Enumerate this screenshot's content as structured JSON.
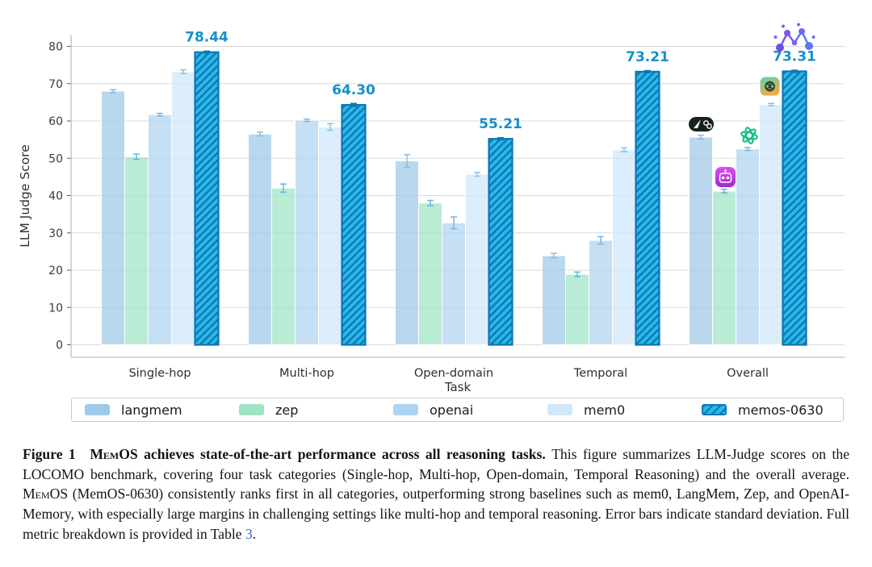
{
  "chart_data": {
    "type": "bar",
    "categories": [
      "Single-hop",
      "Multi-hop",
      "Open-domain",
      "Temporal",
      "Overall"
    ],
    "series": [
      {
        "name": "langmem",
        "color": "#9ec9e8",
        "err_color": "#93b9d9",
        "values": [
          68.0,
          56.5,
          49.3,
          23.9,
          55.7
        ],
        "errors": [
          0.4,
          0.5,
          1.7,
          0.6,
          0.5
        ]
      },
      {
        "name": "zep",
        "color": "#9fe3c4",
        "err_color": "#5fb9d6",
        "values": [
          50.4,
          42.0,
          38.0,
          18.9,
          41.2
        ],
        "errors": [
          0.7,
          1.1,
          0.7,
          0.6,
          0.5
        ]
      },
      {
        "name": "openai",
        "color": "#aed3f0",
        "err_color": "#7fb4e0",
        "values": [
          61.7,
          60.2,
          32.7,
          28.0,
          52.5
        ],
        "errors": [
          0.35,
          0.3,
          1.6,
          1.0,
          0.4
        ]
      },
      {
        "name": "mem0",
        "color": "#cfe7fa",
        "err_color": "#8cc2e6",
        "values": [
          73.2,
          58.4,
          45.7,
          52.3,
          64.4
        ],
        "errors": [
          0.5,
          0.9,
          0.5,
          0.5,
          0.3
        ]
      },
      {
        "name": "memos-0630",
        "color": "#29b7ea",
        "err_color": "#0d7ab8",
        "hatch": true,
        "hatch_color": "#0f76b0",
        "values": [
          78.44,
          64.3,
          55.21,
          73.21,
          73.31
        ],
        "errors": [
          0.3,
          0.4,
          0.3,
          0.3,
          0.3
        ],
        "value_labels": [
          "78.44",
          "64.30",
          "55.21",
          "73.21",
          "73.31"
        ]
      }
    ],
    "xlabel": "Task",
    "ylabel": "LLM Judge Score",
    "yticks": [
      0,
      10,
      20,
      30,
      40,
      50,
      60,
      70,
      80
    ],
    "ylim": [
      0,
      83
    ],
    "grid": true,
    "legend_position": "bottom",
    "annotation_color": "#1590c8"
  },
  "icons": {
    "langmem": "pen-and-link-badge",
    "zep": "robot-badge",
    "openai": "openai-flower",
    "mem0": "gradient-knot-badge",
    "memos": "purple-network-nodes-logo"
  },
  "caption": {
    "segments": [
      {
        "text": "Figure 1  ",
        "style": "b"
      },
      {
        "text": "MemOS",
        "style": "b sc"
      },
      {
        "text": " achieves state-of-the-art performance across all reasoning tasks. ",
        "style": "b"
      },
      {
        "text": "This figure summarizes LLM-Judge scores on the LOCOMO benchmark, covering four task categories (Single-hop, Multi-hop, Open-domain, Temporal Reasoning) and the overall average. ",
        "style": ""
      },
      {
        "text": "MemOS",
        "style": "sc"
      },
      {
        "text": " (MemOS-0630) consistently ranks first in all categories, outperforming strong baselines such as mem0, LangMem, Zep, and OpenAI-Memory, with especially large margins in challenging settings like multi-hop and temporal reasoning. Error bars indicate standard deviation. Full metric breakdown is provided in Table ",
        "style": ""
      },
      {
        "text": "3",
        "style": "lk",
        "interactable": true
      },
      {
        "text": ".",
        "style": ""
      }
    ]
  }
}
